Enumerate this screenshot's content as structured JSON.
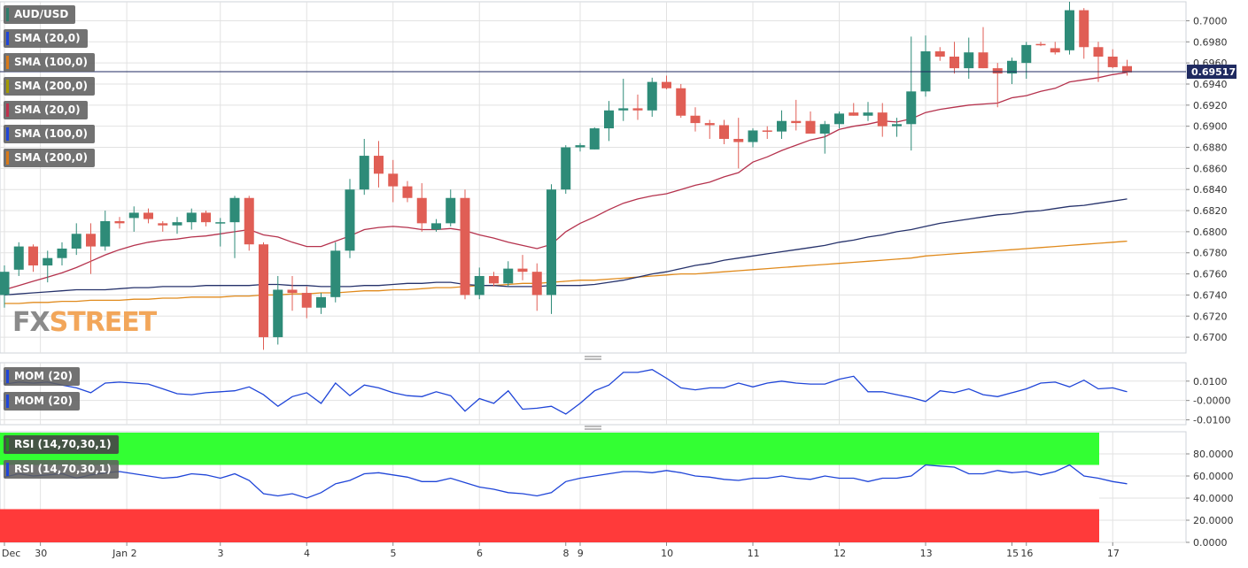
{
  "chart_data": {
    "type": "candlestick",
    "symbol": "AUD/USD",
    "last_price": "0.69517",
    "ylim": [
      0.6685,
      0.7018
    ],
    "y_ticks": [
      "0.7000",
      "0.6980",
      "0.6960",
      "0.6940",
      "0.6920",
      "0.6900",
      "0.6880",
      "0.6860",
      "0.6840",
      "0.6820",
      "0.6800",
      "0.6780",
      "0.6760",
      "0.6740",
      "0.6720",
      "0.6700"
    ],
    "x_labels": [
      {
        "label": "Dec",
        "at": 0
      },
      {
        "label": "30",
        "at": 2.5
      },
      {
        "label": "Jan 2",
        "at": 8.5
      },
      {
        "label": "3",
        "at": 15
      },
      {
        "label": "4",
        "at": 21
      },
      {
        "label": "5",
        "at": 27
      },
      {
        "label": "6",
        "at": 33
      },
      {
        "label": "8",
        "at": 39
      },
      {
        "label": "9",
        "at": 40
      },
      {
        "label": "10",
        "at": 46
      },
      {
        "label": "11",
        "at": 52
      },
      {
        "label": "12",
        "at": 58
      },
      {
        "label": "13",
        "at": 64
      },
      {
        "label": "15",
        "at": 70
      },
      {
        "label": "16",
        "at": 71
      },
      {
        "label": "17",
        "at": 77
      }
    ],
    "candles": [
      {
        "o": 0.674,
        "h": 0.6768,
        "l": 0.6728,
        "c": 0.6762
      },
      {
        "o": 0.6764,
        "h": 0.679,
        "l": 0.6758,
        "c": 0.6786
      },
      {
        "o": 0.6786,
        "h": 0.6788,
        "l": 0.6762,
        "c": 0.6768
      },
      {
        "o": 0.6768,
        "h": 0.6782,
        "l": 0.6752,
        "c": 0.6775
      },
      {
        "o": 0.6775,
        "h": 0.679,
        "l": 0.6768,
        "c": 0.6784
      },
      {
        "o": 0.6784,
        "h": 0.6808,
        "l": 0.6778,
        "c": 0.6798
      },
      {
        "o": 0.6798,
        "h": 0.6808,
        "l": 0.676,
        "c": 0.6786
      },
      {
        "o": 0.6786,
        "h": 0.682,
        "l": 0.6782,
        "c": 0.681
      },
      {
        "o": 0.681,
        "h": 0.6814,
        "l": 0.6803,
        "c": 0.6808
      },
      {
        "o": 0.6813,
        "h": 0.6824,
        "l": 0.68,
        "c": 0.6818
      },
      {
        "o": 0.6818,
        "h": 0.6822,
        "l": 0.6808,
        "c": 0.6812
      },
      {
        "o": 0.6808,
        "h": 0.681,
        "l": 0.68,
        "c": 0.6806
      },
      {
        "o": 0.6806,
        "h": 0.6814,
        "l": 0.6798,
        "c": 0.6809
      },
      {
        "o": 0.6809,
        "h": 0.6822,
        "l": 0.6802,
        "c": 0.6818
      },
      {
        "o": 0.6818,
        "h": 0.682,
        "l": 0.6805,
        "c": 0.6809
      },
      {
        "o": 0.6809,
        "h": 0.6813,
        "l": 0.6786,
        "c": 0.6809
      },
      {
        "o": 0.6809,
        "h": 0.6834,
        "l": 0.6775,
        "c": 0.6832
      },
      {
        "o": 0.6832,
        "h": 0.6834,
        "l": 0.6782,
        "c": 0.6788
      },
      {
        "o": 0.6788,
        "h": 0.679,
        "l": 0.6688,
        "c": 0.67
      },
      {
        "o": 0.67,
        "h": 0.6758,
        "l": 0.6693,
        "c": 0.6745
      },
      {
        "o": 0.6745,
        "h": 0.6758,
        "l": 0.6725,
        "c": 0.6742
      },
      {
        "o": 0.6742,
        "h": 0.6748,
        "l": 0.6718,
        "c": 0.6728
      },
      {
        "o": 0.6728,
        "h": 0.6742,
        "l": 0.6722,
        "c": 0.6738
      },
      {
        "o": 0.6738,
        "h": 0.679,
        "l": 0.6733,
        "c": 0.6782
      },
      {
        "o": 0.6782,
        "h": 0.685,
        "l": 0.6775,
        "c": 0.684
      },
      {
        "o": 0.684,
        "h": 0.6888,
        "l": 0.6835,
        "c": 0.6872
      },
      {
        "o": 0.6872,
        "h": 0.6886,
        "l": 0.6842,
        "c": 0.6855
      },
      {
        "o": 0.6855,
        "h": 0.6868,
        "l": 0.6828,
        "c": 0.6843
      },
      {
        "o": 0.6843,
        "h": 0.6848,
        "l": 0.6828,
        "c": 0.6832
      },
      {
        "o": 0.6832,
        "h": 0.6846,
        "l": 0.68,
        "c": 0.6808
      },
      {
        "o": 0.6802,
        "h": 0.6812,
        "l": 0.68,
        "c": 0.6808
      },
      {
        "o": 0.6808,
        "h": 0.684,
        "l": 0.6805,
        "c": 0.6832
      },
      {
        "o": 0.6832,
        "h": 0.684,
        "l": 0.6736,
        "c": 0.674
      },
      {
        "o": 0.674,
        "h": 0.6766,
        "l": 0.6736,
        "c": 0.6758
      },
      {
        "o": 0.6758,
        "h": 0.6762,
        "l": 0.6748,
        "c": 0.6751
      },
      {
        "o": 0.6751,
        "h": 0.6772,
        "l": 0.6748,
        "c": 0.6765
      },
      {
        "o": 0.6765,
        "h": 0.6778,
        "l": 0.6754,
        "c": 0.6762
      },
      {
        "o": 0.6762,
        "h": 0.677,
        "l": 0.6725,
        "c": 0.674
      },
      {
        "o": 0.674,
        "h": 0.6845,
        "l": 0.6722,
        "c": 0.684
      },
      {
        "o": 0.684,
        "h": 0.6882,
        "l": 0.6836,
        "c": 0.688
      },
      {
        "o": 0.688,
        "h": 0.6884,
        "l": 0.6876,
        "c": 0.6882
      },
      {
        "o": 0.6878,
        "h": 0.6899,
        "l": 0.6878,
        "c": 0.6898
      },
      {
        "o": 0.6898,
        "h": 0.6924,
        "l": 0.6886,
        "c": 0.6915
      },
      {
        "o": 0.6915,
        "h": 0.6945,
        "l": 0.6905,
        "c": 0.6917
      },
      {
        "o": 0.6917,
        "h": 0.693,
        "l": 0.6906,
        "c": 0.6915
      },
      {
        "o": 0.6915,
        "h": 0.6946,
        "l": 0.6909,
        "c": 0.6942
      },
      {
        "o": 0.6942,
        "h": 0.6948,
        "l": 0.6935,
        "c": 0.6936
      },
      {
        "o": 0.6936,
        "h": 0.694,
        "l": 0.6908,
        "c": 0.691
      },
      {
        "o": 0.691,
        "h": 0.6918,
        "l": 0.6895,
        "c": 0.6903
      },
      {
        "o": 0.6903,
        "h": 0.6906,
        "l": 0.6888,
        "c": 0.6901
      },
      {
        "o": 0.6901,
        "h": 0.6906,
        "l": 0.6883,
        "c": 0.6888
      },
      {
        "o": 0.6888,
        "h": 0.6908,
        "l": 0.686,
        "c": 0.6885
      },
      {
        "o": 0.6885,
        "h": 0.6898,
        "l": 0.688,
        "c": 0.6896
      },
      {
        "o": 0.6896,
        "h": 0.69,
        "l": 0.6888,
        "c": 0.6895
      },
      {
        "o": 0.6895,
        "h": 0.6915,
        "l": 0.6888,
        "c": 0.6905
      },
      {
        "o": 0.6905,
        "h": 0.6925,
        "l": 0.6896,
        "c": 0.6903
      },
      {
        "o": 0.6905,
        "h": 0.6914,
        "l": 0.6893,
        "c": 0.6893
      },
      {
        "o": 0.6893,
        "h": 0.6905,
        "l": 0.6874,
        "c": 0.6902
      },
      {
        "o": 0.6902,
        "h": 0.6914,
        "l": 0.6898,
        "c": 0.6912
      },
      {
        "o": 0.6913,
        "h": 0.6922,
        "l": 0.691,
        "c": 0.691
      },
      {
        "o": 0.691,
        "h": 0.6923,
        "l": 0.6905,
        "c": 0.6913
      },
      {
        "o": 0.6913,
        "h": 0.6922,
        "l": 0.689,
        "c": 0.69
      },
      {
        "o": 0.69,
        "h": 0.6908,
        "l": 0.689,
        "c": 0.6902
      },
      {
        "o": 0.6902,
        "h": 0.6985,
        "l": 0.6877,
        "c": 0.6933
      },
      {
        "o": 0.6933,
        "h": 0.6986,
        "l": 0.6928,
        "c": 0.6971
      },
      {
        "o": 0.6971,
        "h": 0.6975,
        "l": 0.6962,
        "c": 0.6966
      },
      {
        "o": 0.6966,
        "h": 0.698,
        "l": 0.695,
        "c": 0.6955
      },
      {
        "o": 0.6955,
        "h": 0.6984,
        "l": 0.6945,
        "c": 0.697
      },
      {
        "o": 0.697,
        "h": 0.6994,
        "l": 0.6955,
        "c": 0.6955
      },
      {
        "o": 0.6955,
        "h": 0.696,
        "l": 0.6918,
        "c": 0.695
      },
      {
        "o": 0.695,
        "h": 0.6965,
        "l": 0.694,
        "c": 0.6962
      },
      {
        "o": 0.696,
        "h": 0.698,
        "l": 0.6945,
        "c": 0.6977
      },
      {
        "o": 0.6978,
        "h": 0.698,
        "l": 0.6976,
        "c": 0.6977
      },
      {
        "o": 0.6974,
        "h": 0.698,
        "l": 0.6968,
        "c": 0.697
      },
      {
        "o": 0.6972,
        "h": 0.7018,
        "l": 0.6968,
        "c": 0.701
      },
      {
        "o": 0.701,
        "h": 0.7012,
        "l": 0.6964,
        "c": 0.6975
      },
      {
        "o": 0.6975,
        "h": 0.698,
        "l": 0.6942,
        "c": 0.6966
      },
      {
        "o": 0.6966,
        "h": 0.6973,
        "l": 0.6955,
        "c": 0.6956
      },
      {
        "o": 0.6957,
        "h": 0.6963,
        "l": 0.6948,
        "c": 0.6951
      }
    ],
    "sma20": [
      0.6745,
      0.6749,
      0.6753,
      0.6757,
      0.6761,
      0.6766,
      0.6772,
      0.6778,
      0.6783,
      0.6787,
      0.679,
      0.6792,
      0.6793,
      0.6795,
      0.6796,
      0.6798,
      0.68,
      0.6802,
      0.6797,
      0.6795,
      0.679,
      0.6786,
      0.6786,
      0.6791,
      0.6796,
      0.6802,
      0.6804,
      0.6805,
      0.6804,
      0.6802,
      0.6802,
      0.6803,
      0.6801,
      0.6797,
      0.6794,
      0.679,
      0.6787,
      0.6784,
      0.6788,
      0.68,
      0.6808,
      0.6814,
      0.6821,
      0.6827,
      0.6831,
      0.6834,
      0.6836,
      0.684,
      0.6844,
      0.6847,
      0.6852,
      0.6856,
      0.6866,
      0.6871,
      0.6877,
      0.6882,
      0.6887,
      0.689,
      0.6897,
      0.69,
      0.6902,
      0.6905,
      0.6904,
      0.6907,
      0.6913,
      0.6916,
      0.6918,
      0.692,
      0.6921,
      0.6922,
      0.6927,
      0.6929,
      0.6933,
      0.6936,
      0.6942,
      0.6944,
      0.6946,
      0.6949,
      0.6951
    ],
    "sma100": [
      0.674,
      0.6741,
      0.6742,
      0.6743,
      0.6744,
      0.6745,
      0.6745,
      0.6745,
      0.6746,
      0.6747,
      0.6747,
      0.6748,
      0.6748,
      0.6748,
      0.6749,
      0.6749,
      0.6749,
      0.6749,
      0.675,
      0.675,
      0.6749,
      0.6749,
      0.6748,
      0.6748,
      0.6748,
      0.6749,
      0.6749,
      0.675,
      0.6751,
      0.6751,
      0.6752,
      0.6752,
      0.675,
      0.6749,
      0.6749,
      0.6748,
      0.6748,
      0.6748,
      0.6749,
      0.6749,
      0.6749,
      0.675,
      0.6752,
      0.6754,
      0.6757,
      0.676,
      0.6762,
      0.6765,
      0.6768,
      0.677,
      0.6773,
      0.6775,
      0.6777,
      0.6779,
      0.6781,
      0.6783,
      0.6785,
      0.6787,
      0.679,
      0.6792,
      0.6795,
      0.6797,
      0.68,
      0.6802,
      0.6805,
      0.6808,
      0.681,
      0.6812,
      0.6814,
      0.6816,
      0.6817,
      0.6819,
      0.682,
      0.6822,
      0.6824,
      0.6825,
      0.6827,
      0.6829,
      0.6831
    ],
    "sma200": [
      0.6732,
      0.6732,
      0.6733,
      0.6733,
      0.6734,
      0.6734,
      0.6735,
      0.6735,
      0.6735,
      0.6736,
      0.6736,
      0.6737,
      0.6737,
      0.6738,
      0.6738,
      0.6738,
      0.6739,
      0.6739,
      0.674,
      0.674,
      0.6741,
      0.6741,
      0.6742,
      0.6742,
      0.6743,
      0.6744,
      0.6744,
      0.6745,
      0.6745,
      0.6746,
      0.6747,
      0.6747,
      0.6748,
      0.6749,
      0.6749,
      0.675,
      0.6751,
      0.6751,
      0.6752,
      0.6753,
      0.6754,
      0.6754,
      0.6755,
      0.6756,
      0.6757,
      0.6758,
      0.6759,
      0.676,
      0.676,
      0.6761,
      0.6762,
      0.6763,
      0.6764,
      0.6765,
      0.6766,
      0.6767,
      0.6768,
      0.6769,
      0.677,
      0.6771,
      0.6772,
      0.6773,
      0.6774,
      0.6775,
      0.6777,
      0.6778,
      0.6779,
      0.678,
      0.6781,
      0.6782,
      0.6783,
      0.6784,
      0.6785,
      0.6786,
      0.6787,
      0.6788,
      0.6789,
      0.679,
      0.6791
    ],
    "momentum": {
      "ylim": [
        -0.0125,
        0.0195
      ],
      "y_ticks": [
        "0.0100",
        "-0.0000",
        "-0.0100"
      ],
      "values": [
        0.0085,
        0.0095,
        0.009,
        0.0095,
        0.008,
        0.0065,
        0.004,
        0.009,
        0.0095,
        0.009,
        0.0085,
        0.006,
        0.0035,
        0.003,
        0.004,
        0.0045,
        0.005,
        0.007,
        0.003,
        -0.003,
        0.002,
        0.004,
        -0.0015,
        0.009,
        0.0025,
        0.008,
        0.0065,
        0.004,
        0.0025,
        0.002,
        0.0045,
        0.0025,
        -0.0055,
        0.001,
        -0.0015,
        0.005,
        -0.0045,
        -0.004,
        -0.003,
        -0.007,
        -0.0015,
        0.005,
        0.008,
        0.0145,
        0.0145,
        0.016,
        0.0115,
        0.0065,
        0.0055,
        0.0065,
        0.0065,
        0.009,
        0.007,
        0.009,
        0.01,
        0.009,
        0.0085,
        0.0085,
        0.011,
        0.0125,
        0.0045,
        0.0045,
        0.003,
        0.0015,
        -0.0005,
        0.005,
        0.004,
        0.006,
        0.003,
        0.002,
        0.004,
        0.006,
        0.009,
        0.0095,
        0.007,
        0.0105,
        0.006,
        0.0065,
        0.0045
      ],
      "offset": 5
    },
    "rsi": {
      "ylim": [
        0,
        100
      ],
      "y_ticks": [
        "80.0000",
        "60.0000",
        "40.0000",
        "20.0000",
        "0.0000"
      ],
      "overbought": 70,
      "oversold": 30,
      "values": [
        59,
        62,
        60,
        61,
        62,
        58,
        61,
        63,
        64,
        62,
        60,
        58,
        59,
        62,
        61,
        58,
        62,
        56,
        44,
        42,
        44,
        40,
        45,
        53,
        56,
        62,
        63,
        61,
        59,
        55,
        55,
        58,
        54,
        50,
        48,
        45,
        44,
        42,
        45,
        55,
        58,
        60,
        62,
        64,
        64,
        63,
        65,
        63,
        60,
        59,
        57,
        56,
        58,
        58,
        60,
        58,
        57,
        60,
        58,
        58,
        55,
        58,
        58,
        60,
        70,
        69,
        68,
        62,
        62,
        65,
        63,
        64,
        61,
        64,
        70,
        60,
        58,
        55,
        53
      ],
      "offset": 0
    },
    "legend_main": [
      {
        "label": "AUD/USD",
        "color": "#2e7d6b"
      },
      {
        "label": "SMA (20,0)",
        "color": "#1f45d8"
      },
      {
        "label": "SMA (100,0)",
        "color": "#d97a18"
      },
      {
        "label": "SMA (200,0)",
        "color": "#a39a00"
      },
      {
        "label": "SMA (20,0)",
        "color": "#c0304c"
      },
      {
        "label": "SMA (100,0)",
        "color": "#1f45d8"
      },
      {
        "label": "SMA (200,0)",
        "color": "#d97a18"
      }
    ],
    "legend_mom": [
      {
        "label": "MOM (20)",
        "color": "#1f45d8"
      },
      {
        "label": "MOM (20)",
        "color": "#1f45d8"
      }
    ],
    "legend_rsi": [
      {
        "label": "RSI (14,70,30,1)",
        "color": "#1f8f1f"
      },
      {
        "label": "RSI (14,70,30,1)",
        "color": "#1f45d8"
      }
    ],
    "watermark": {
      "part1": "FX",
      "part2": "STREET"
    },
    "colors": {
      "bull": "#2e8b78",
      "bear": "#e05e55",
      "sma20": "#b5324d",
      "sma100": "#26326b",
      "sma200": "#e08a1c",
      "indicator": "#1f45d8",
      "price_line": "#1f2a60",
      "ob_fill": "#33ff33",
      "os_fill": "#ff3a3a",
      "grid": "#e2e2e2"
    }
  }
}
